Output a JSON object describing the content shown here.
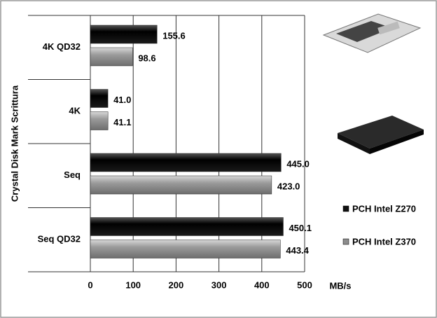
{
  "chart_data": {
    "type": "bar",
    "orientation": "horizontal",
    "y_axis_label": "Crystal Disk Mark Scrittura",
    "x_axis_label": "MB/s",
    "categories": [
      "4K QD32",
      "4K",
      "Seq",
      "Seq QD32"
    ],
    "series": [
      {
        "name": "PCH Intel Z270",
        "color": "#111111",
        "values": [
          155.6,
          41.0,
          445.0,
          450.1
        ],
        "value_labels": [
          "155.6",
          "41.0",
          "445.0",
          "450.1"
        ]
      },
      {
        "name": "PCH Intel Z370",
        "color": "#8c8c8c",
        "values": [
          98.6,
          41.1,
          423.0,
          443.4
        ],
        "value_labels": [
          "98.6",
          "41.1",
          "423.0",
          "443.4"
        ]
      }
    ],
    "xlim": [
      0,
      500
    ],
    "xticks": [
      0,
      100,
      200,
      300,
      400,
      500
    ],
    "grid": true,
    "legend": "right"
  }
}
